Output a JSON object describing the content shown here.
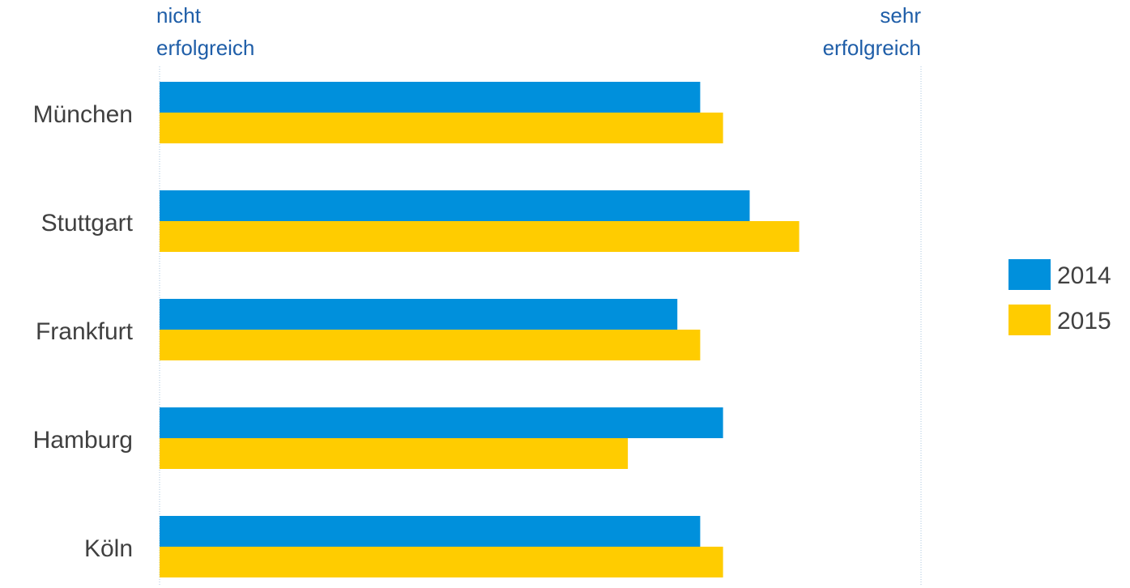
{
  "chart_data": {
    "type": "bar",
    "orientation": "horizontal",
    "categories": [
      "München",
      "Stuttgart",
      "Frankfurt",
      "Hamburg",
      "Köln"
    ],
    "series": [
      {
        "name": "2014",
        "color": "#0090dc",
        "values": [
          71,
          77.5,
          68,
          74,
          71
        ]
      },
      {
        "name": "2015",
        "color": "#ffcc00",
        "values": [
          74,
          84,
          71,
          61.5,
          74
        ]
      }
    ],
    "xlim": [
      0,
      100
    ],
    "scale_labels": {
      "min": "nicht erfolgreich",
      "max": "sehr erfolgreich"
    },
    "legend_position": "right",
    "grid": false,
    "colors": {
      "label_text": "#404040",
      "scale_text": "#1f5ea8",
      "axis_line": "#a9c4dc"
    }
  }
}
